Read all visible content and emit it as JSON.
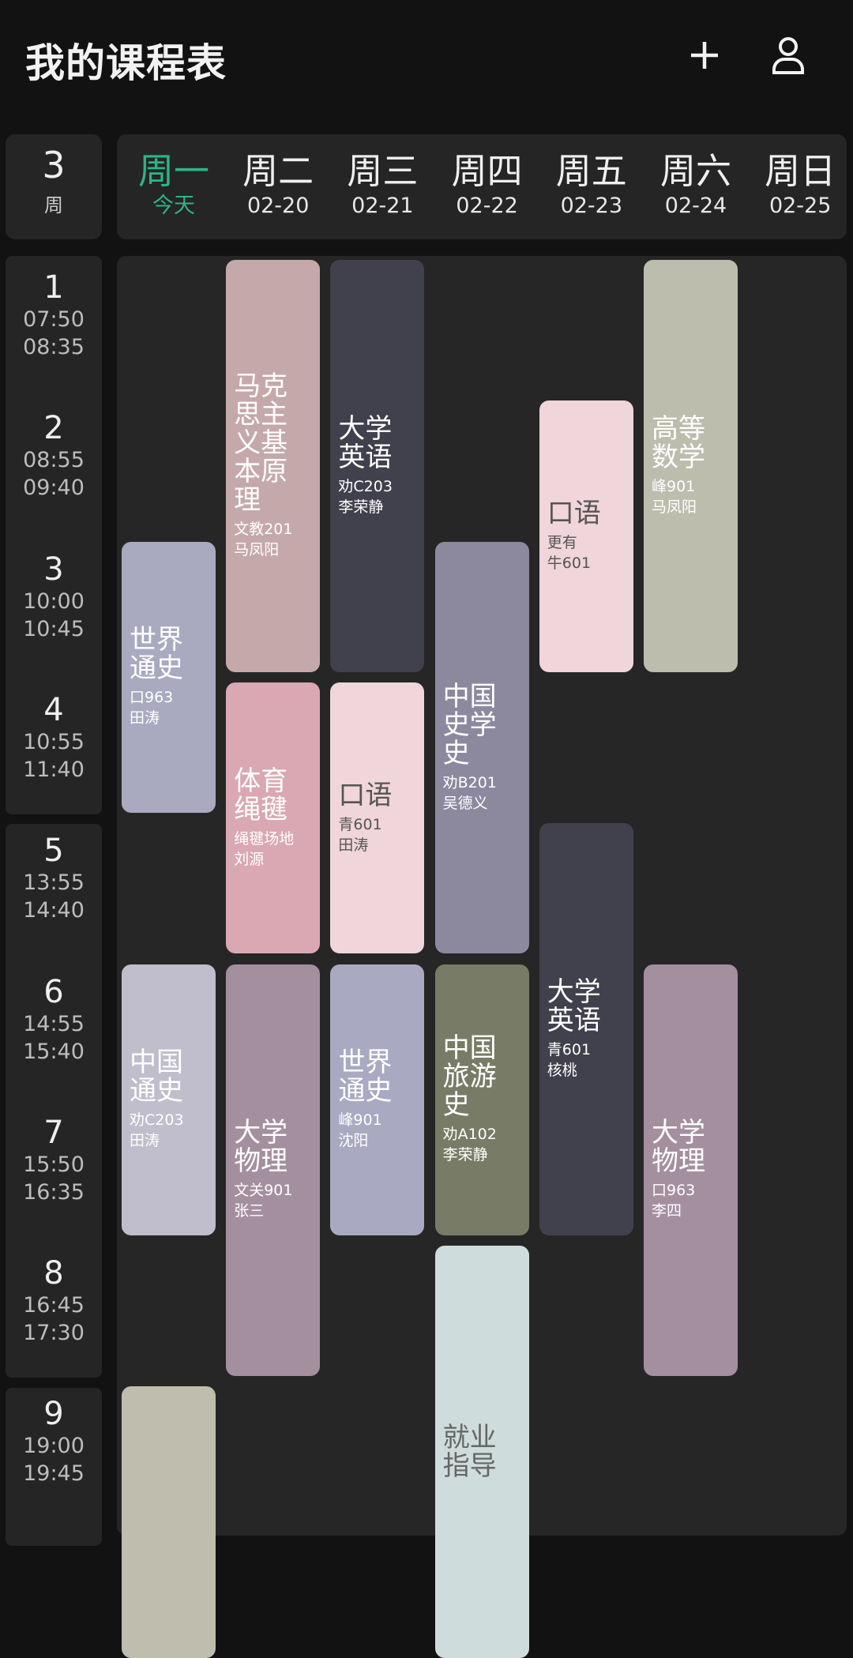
{
  "header": {
    "title": "我的课程表",
    "add_icon": "plus-icon",
    "profile_icon": "user-icon"
  },
  "week": {
    "number": "3",
    "label": "周"
  },
  "accent_color": "#2eb488",
  "days": [
    {
      "name": "周一",
      "date": "今天",
      "today": true
    },
    {
      "name": "周二",
      "date": "02-20"
    },
    {
      "name": "周三",
      "date": "02-21"
    },
    {
      "name": "周四",
      "date": "02-22"
    },
    {
      "name": "周五",
      "date": "02-23"
    },
    {
      "name": "周六",
      "date": "02-24"
    },
    {
      "name": "周日",
      "date": "02-25"
    }
  ],
  "periods": [
    {
      "num": "1",
      "start": "07:50",
      "end": "08:35"
    },
    {
      "num": "2",
      "start": "08:55",
      "end": "09:40"
    },
    {
      "num": "3",
      "start": "10:00",
      "end": "10:45"
    },
    {
      "num": "4",
      "start": "10:55",
      "end": "11:40"
    },
    {
      "num": "5",
      "start": "13:55",
      "end": "14:40"
    },
    {
      "num": "6",
      "start": "14:55",
      "end": "15:40"
    },
    {
      "num": "7",
      "start": "15:50",
      "end": "16:35"
    },
    {
      "num": "8",
      "start": "16:45",
      "end": "17:30"
    },
    {
      "num": "9",
      "start": "19:00",
      "end": "19:45"
    }
  ],
  "courses": [
    {
      "day": 1,
      "start": 3,
      "span": 2,
      "title": "世界通史",
      "room": "口963",
      "teacher": "田涛",
      "color": "#a9a9c0",
      "text": "#ffffff"
    },
    {
      "day": 1,
      "start": 6,
      "span": 2,
      "title": "中国通史",
      "room": "劝C203",
      "teacher": "田涛",
      "color": "#c0bdcc",
      "text": "#ffffff"
    },
    {
      "day": 1,
      "start": 9,
      "span": 2,
      "title": "",
      "room": "",
      "teacher": "",
      "color": "#bebdae",
      "text": "#ffffff"
    },
    {
      "day": 2,
      "start": 1,
      "span": 3,
      "title": "马克思主义基本原理",
      "room": "文教201",
      "teacher": "马凤阳",
      "color": "#c5a9aa",
      "text": "#ffffff"
    },
    {
      "day": 2,
      "start": 4,
      "span": 2,
      "title": "体育绳毽",
      "room": "绳毽场地",
      "teacher": "刘源",
      "color": "#d9a8b3",
      "text": "#ffffff"
    },
    {
      "day": 2,
      "start": 6,
      "span": 3,
      "title": "大学物理",
      "room": "文关901",
      "teacher": "张三",
      "color": "#a48f9f",
      "text": "#ffffff"
    },
    {
      "day": 3,
      "start": 1,
      "span": 3,
      "title": "大学英语",
      "room": "劝C203",
      "teacher": "李荣静",
      "color": "#41404d",
      "text": "#ffffff"
    },
    {
      "day": 3,
      "start": 4,
      "span": 2,
      "title": "口语",
      "room": "青601",
      "teacher": "田涛",
      "color": "#f0d5da",
      "text": "#555555"
    },
    {
      "day": 3,
      "start": 6,
      "span": 2,
      "title": "世界通史",
      "room": "峰901",
      "teacher": "沈阳",
      "color": "#a9a9c2",
      "text": "#ffffff"
    },
    {
      "day": 4,
      "start": 3,
      "span": 3,
      "title": "中国史学史",
      "room": "劝B201",
      "teacher": "吴德义",
      "color": "#8c899f",
      "text": "#ffffff"
    },
    {
      "day": 4,
      "start": 6,
      "span": 2,
      "title": "中国旅游史",
      "room": "劝A102",
      "teacher": "李荣静",
      "color": "#787c66",
      "text": "#ffffff"
    },
    {
      "day": 4,
      "start": 8,
      "span": 3,
      "title": "就业指导",
      "room": "",
      "teacher": "",
      "color": "#cfdcdc",
      "text": "#666666"
    },
    {
      "day": 5,
      "start": 2,
      "span": 2,
      "title": "口语",
      "room": "更有",
      "teacher": "牛601",
      "color": "#f0d5da",
      "text": "#555555"
    },
    {
      "day": 5,
      "start": 5,
      "span": 3,
      "title": "大学英语",
      "room": "青601",
      "teacher": "核桃",
      "color": "#41404d",
      "text": "#ffffff"
    },
    {
      "day": 6,
      "start": 1,
      "span": 3,
      "title": "高等数学",
      "room": "峰901",
      "teacher": "马凤阳",
      "color": "#bdbdae",
      "text": "#ffffff"
    },
    {
      "day": 6,
      "start": 6,
      "span": 3,
      "title": "大学物理",
      "room": "口963",
      "teacher": "李四",
      "color": "#a48f9f",
      "text": "#ffffff"
    }
  ]
}
